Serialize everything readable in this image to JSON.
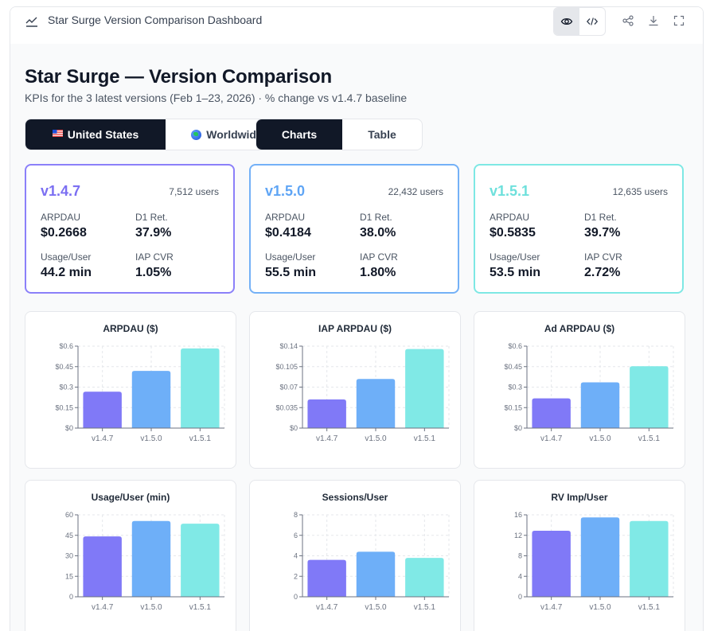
{
  "window": {
    "title": "Star Surge Version Comparison Dashboard"
  },
  "toolbar": {
    "preview_icon": "eye-icon",
    "code_icon": "code-icon",
    "share_icon": "share-icon",
    "download_icon": "download-icon",
    "fullscreen_icon": "fullscreen-icon"
  },
  "header": {
    "title": "Star Surge — Version Comparison",
    "subtitle": "KPIs for the 3 latest versions (Feb 1–23, 2026) · % change vs v1.4.7 baseline"
  },
  "region_toggle": {
    "options": [
      {
        "label": "United States",
        "icon": "us-flag-icon",
        "active": true
      },
      {
        "label": "Worldwide",
        "icon": "globe-icon",
        "active": false
      }
    ]
  },
  "view_toggle": {
    "options": [
      {
        "label": "Charts",
        "active": true
      },
      {
        "label": "Table",
        "active": false
      }
    ]
  },
  "version_cards": [
    {
      "version": "v1.4.7",
      "users": "7,512 users",
      "color": "#8b80f9",
      "kpis": [
        {
          "label": "ARPDAU",
          "value": "$0.2668"
        },
        {
          "label": "D1 Ret.",
          "value": "37.9%"
        },
        {
          "label": "Usage/User",
          "value": "44.2 min"
        },
        {
          "label": "IAP CVR",
          "value": "1.05%"
        }
      ]
    },
    {
      "version": "v1.5.0",
      "users": "22,432 users",
      "color": "#74b1f7",
      "kpis": [
        {
          "label": "ARPDAU",
          "value": "$0.4184"
        },
        {
          "label": "D1 Ret.",
          "value": "38.0%"
        },
        {
          "label": "Usage/User",
          "value": "55.5 min"
        },
        {
          "label": "IAP CVR",
          "value": "1.80%"
        }
      ]
    },
    {
      "version": "v1.5.1",
      "users": "12,635 users",
      "color": "#7ee8e4",
      "kpis": [
        {
          "label": "ARPDAU",
          "value": "$0.5835"
        },
        {
          "label": "D1 Ret.",
          "value": "39.7%"
        },
        {
          "label": "Usage/User",
          "value": "53.5 min"
        },
        {
          "label": "IAP CVR",
          "value": "2.72%"
        }
      ]
    }
  ],
  "colors": {
    "v147": "#8079f7",
    "v150": "#6eaff8",
    "v151": "#80e9e6",
    "dark": "#111827"
  },
  "chart_data": [
    {
      "type": "bar",
      "title": "ARPDAU ($)",
      "categories": [
        "v1.4.7",
        "v1.5.0",
        "v1.5.1"
      ],
      "values": [
        0.2668,
        0.4184,
        0.5835
      ],
      "ylim": [
        0,
        0.6
      ],
      "yticks": [
        0,
        0.15,
        0.3,
        0.45,
        0.6
      ],
      "ytick_labels": [
        "$0",
        "$0.15",
        "$0.3",
        "$0.45",
        "$0.6"
      ]
    },
    {
      "type": "bar",
      "title": "IAP ARPDAU ($)",
      "categories": [
        "v1.4.7",
        "v1.5.0",
        "v1.5.1"
      ],
      "values": [
        0.049,
        0.084,
        0.135
      ],
      "ylim": [
        0,
        0.14
      ],
      "yticks": [
        0,
        0.035,
        0.07,
        0.105,
        0.14
      ],
      "ytick_labels": [
        "$0",
        "$0.035",
        "$0.07",
        "$0.105",
        "$0.14"
      ]
    },
    {
      "type": "bar",
      "title": "Ad ARPDAU ($)",
      "categories": [
        "v1.4.7",
        "v1.5.0",
        "v1.5.1"
      ],
      "values": [
        0.218,
        0.335,
        0.453
      ],
      "ylim": [
        0,
        0.6
      ],
      "yticks": [
        0,
        0.15,
        0.3,
        0.45,
        0.6
      ],
      "ytick_labels": [
        "$0",
        "$0.15",
        "$0.3",
        "$0.45",
        "$0.6"
      ]
    },
    {
      "type": "bar",
      "title": "Usage/User (min)",
      "categories": [
        "v1.4.7",
        "v1.5.0",
        "v1.5.1"
      ],
      "values": [
        44.2,
        55.5,
        53.5
      ],
      "ylim": [
        0,
        60
      ],
      "yticks": [
        0,
        15,
        30,
        45,
        60
      ],
      "ytick_labels": [
        "0",
        "15",
        "30",
        "45",
        "60"
      ]
    },
    {
      "type": "bar",
      "title": "Sessions/User",
      "categories": [
        "v1.4.7",
        "v1.5.0",
        "v1.5.1"
      ],
      "values": [
        3.6,
        4.4,
        3.8
      ],
      "ylim": [
        0,
        8
      ],
      "yticks": [
        0,
        2,
        4,
        6,
        8
      ],
      "ytick_labels": [
        "0",
        "2",
        "4",
        "6",
        "8"
      ]
    },
    {
      "type": "bar",
      "title": "RV Imp/User",
      "categories": [
        "v1.4.7",
        "v1.5.0",
        "v1.5.1"
      ],
      "values": [
        12.9,
        15.5,
        14.8
      ],
      "ylim": [
        0,
        16
      ],
      "yticks": [
        0,
        4,
        8,
        12,
        16
      ],
      "ytick_labels": [
        "0",
        "4",
        "8",
        "12",
        "16"
      ]
    }
  ]
}
